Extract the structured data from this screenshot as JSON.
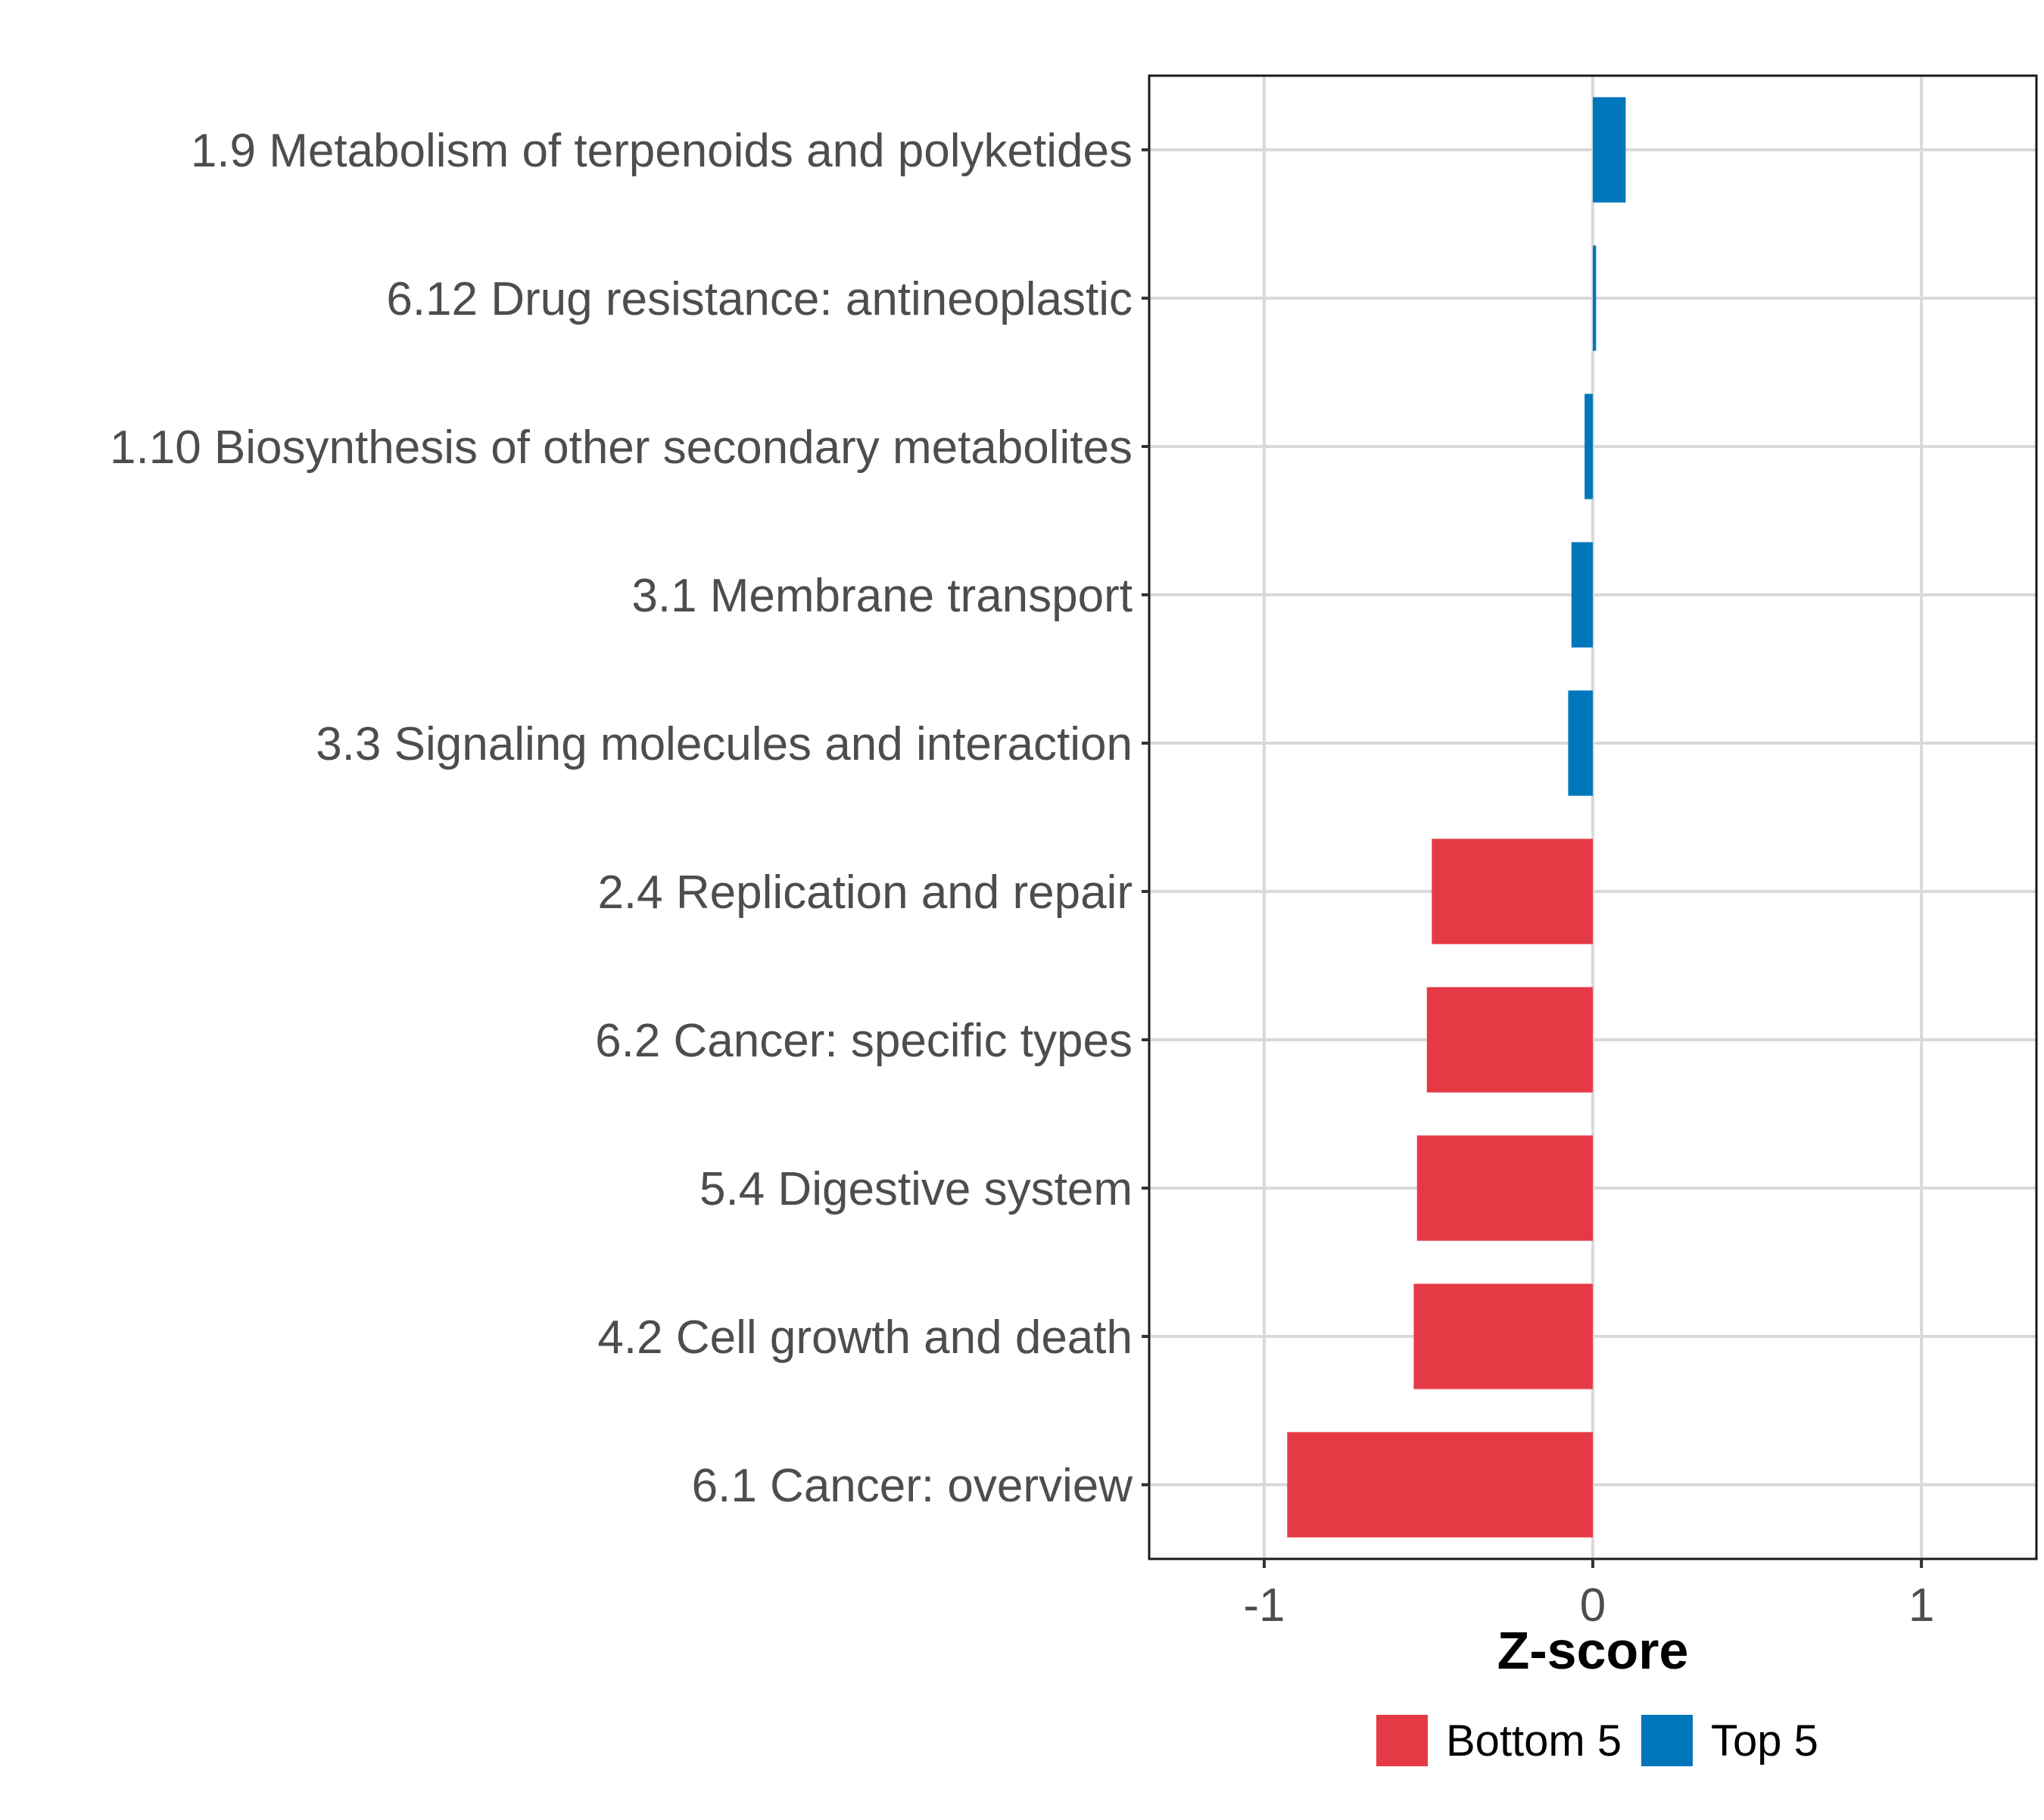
{
  "chart_data": {
    "type": "bar",
    "orientation": "horizontal",
    "categories": [
      "1.9 Metabolism of terpenoids and polyketides",
      "6.12 Drug resistance: antineoplastic",
      "1.10 Biosynthesis of other secondary metabolites",
      "3.1 Membrane transport",
      "3.3 Signaling molecules and interaction",
      "2.4 Replication and repair",
      "6.2 Cancer: specific types",
      "5.4 Digestive system",
      "4.2 Cell growth and death",
      "6.1 Cancer: overview"
    ],
    "values": [
      0.1,
      0.01,
      -0.025,
      -0.065,
      -0.075,
      -0.49,
      -0.505,
      -0.535,
      -0.545,
      -0.93
    ],
    "groups": [
      "Top 5",
      "Top 5",
      "Top 5",
      "Top 5",
      "Top 5",
      "Bottom 5",
      "Bottom 5",
      "Bottom 5",
      "Bottom 5",
      "Bottom 5"
    ],
    "xlabel": "Z-score",
    "ylabel": "",
    "xlim": [
      -1.35,
      1.35
    ],
    "xticks": [
      -1,
      0,
      1
    ],
    "xtick_labels": [
      "-1",
      "0",
      "1"
    ],
    "grid": true,
    "legend": {
      "position": "bottom",
      "items": [
        {
          "label": "Bottom 5",
          "color": "#e63946"
        },
        {
          "label": "Top 5",
          "color": "#0077bb"
        }
      ]
    },
    "colors": {
      "Bottom 5": "#e63946",
      "Top 5": "#0077bb"
    }
  }
}
